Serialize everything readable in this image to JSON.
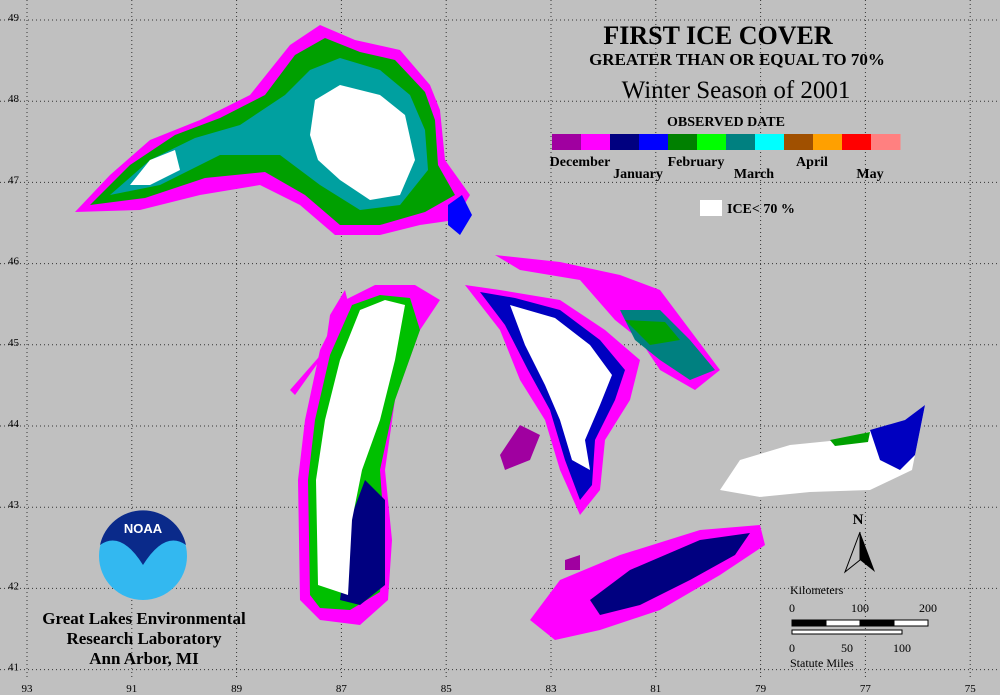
{
  "title": "FIRST ICE COVER",
  "subtitle": "GREATER THAN OR EQUAL TO 70%",
  "season": "Winter Season of 2001",
  "legend": {
    "title": "OBSERVED DATE",
    "items": [
      {
        "label": "December",
        "colors": [
          "#a000a0",
          "#ff00ff"
        ]
      },
      {
        "label": "January",
        "colors": [
          "#000080",
          "#0000ff"
        ]
      },
      {
        "label": "February",
        "colors": [
          "#008000",
          "#00ff00"
        ]
      },
      {
        "label": "March",
        "colors": [
          "#008080",
          "#00ffff"
        ]
      },
      {
        "label": "April",
        "colors": [
          "#a05000",
          "#ffa000"
        ]
      },
      {
        "label": "May",
        "colors": [
          "#ff0000",
          "#ff8080"
        ]
      }
    ],
    "ice_label": "ICE< 70 %"
  },
  "graticule": {
    "longitudes": [
      93,
      91,
      89,
      87,
      85,
      83,
      81,
      79,
      77,
      75
    ],
    "latitudes": [
      49,
      48,
      47,
      46,
      45,
      44,
      43,
      42,
      41
    ]
  },
  "scale": {
    "km_label": "Kilometers",
    "km_ticks": [
      0,
      100,
      200
    ],
    "mile_label": "Statute Miles",
    "mile_ticks": [
      0,
      50,
      100
    ]
  },
  "north": "N",
  "logo": "NOAA",
  "lab": [
    "Great Lakes Environmental",
    "Research Laboratory",
    "Ann Arbor, MI"
  ]
}
